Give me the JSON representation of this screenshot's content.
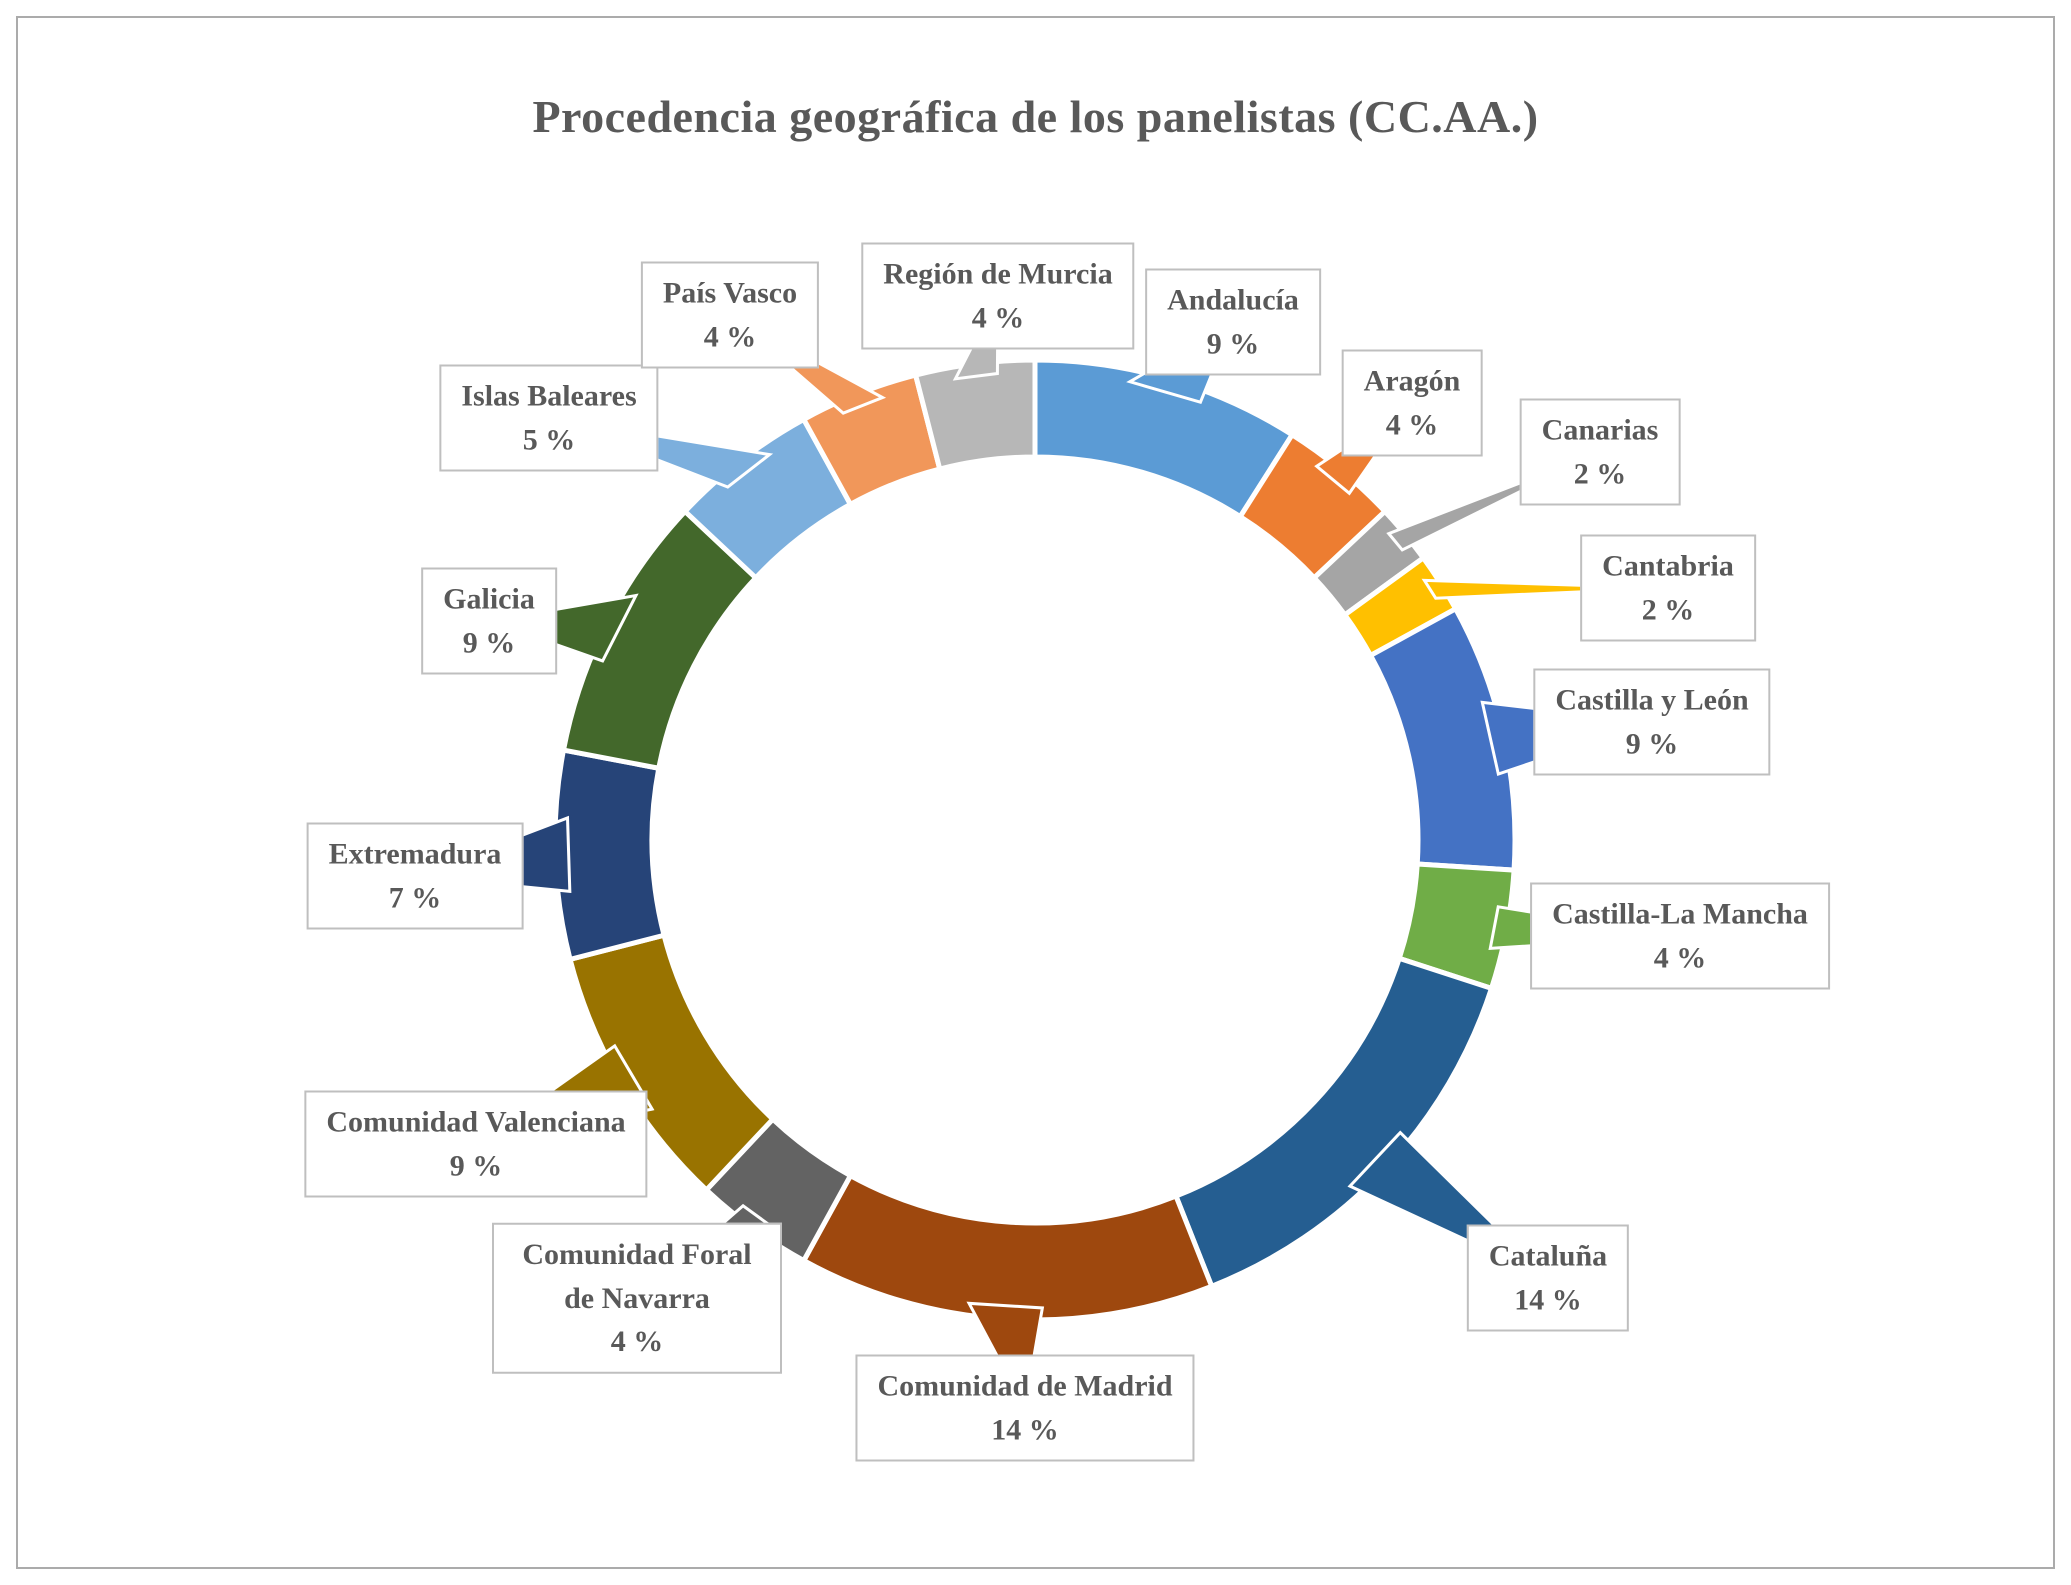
{
  "page": {
    "background": "#ffffff",
    "frame_border_color": "#ABABAB"
  },
  "chart_data": {
    "type": "pie",
    "variant": "donut",
    "title": "Procedencia geográfica de los panelistas (CC.AA.)",
    "title_color": "#595959",
    "label_color": "#595959",
    "start_angle_deg": 0,
    "direction": "clockwise",
    "hole": true,
    "values_unit": "%",
    "total": 100,
    "legend": "none",
    "labels_style": "callout boxes with leader wedges, name + percentage",
    "slices": [
      {
        "label": "Andalucía",
        "value": 9,
        "pct_label": "9 %",
        "color": "#5B9BD5"
      },
      {
        "label": "Aragón",
        "value": 4,
        "pct_label": "4 %",
        "color": "#ED7D31"
      },
      {
        "label": "Canarias",
        "value": 2,
        "pct_label": "2 %",
        "color": "#A5A5A5"
      },
      {
        "label": "Cantabria",
        "value": 2,
        "pct_label": "2 %",
        "color": "#FFC000"
      },
      {
        "label": "Castilla y León",
        "value": 9,
        "pct_label": "9 %",
        "color": "#4472C4"
      },
      {
        "label": "Castilla-La Mancha",
        "value": 4,
        "pct_label": "4 %",
        "color": "#70AD47"
      },
      {
        "label": "Cataluña",
        "value": 14,
        "pct_label": "14 %",
        "color": "#255E91"
      },
      {
        "label": "Comunidad de Madrid",
        "value": 14,
        "pct_label": "14 %",
        "color": "#9E480E"
      },
      {
        "label": "Comunidad Foral de Navarra",
        "value": 4,
        "pct_label": "4 %",
        "color": "#636363"
      },
      {
        "label": "Comunidad Valenciana",
        "value": 9,
        "pct_label": "9 %",
        "color": "#997300"
      },
      {
        "label": "Extremadura",
        "value": 7,
        "pct_label": "7 %",
        "color": "#264478"
      },
      {
        "label": "Galicia",
        "value": 9,
        "pct_label": "9 %",
        "color": "#43682B"
      },
      {
        "label": "Islas Baleares",
        "value": 5,
        "pct_label": "5 %",
        "color": "#7CAFDD"
      },
      {
        "label": "País Vasco",
        "value": 4,
        "pct_label": "4 %",
        "color": "#F1975A"
      },
      {
        "label": "Región de Murcia",
        "value": 4,
        "pct_label": "4 %",
        "color": "#B7B7B7"
      }
    ]
  }
}
